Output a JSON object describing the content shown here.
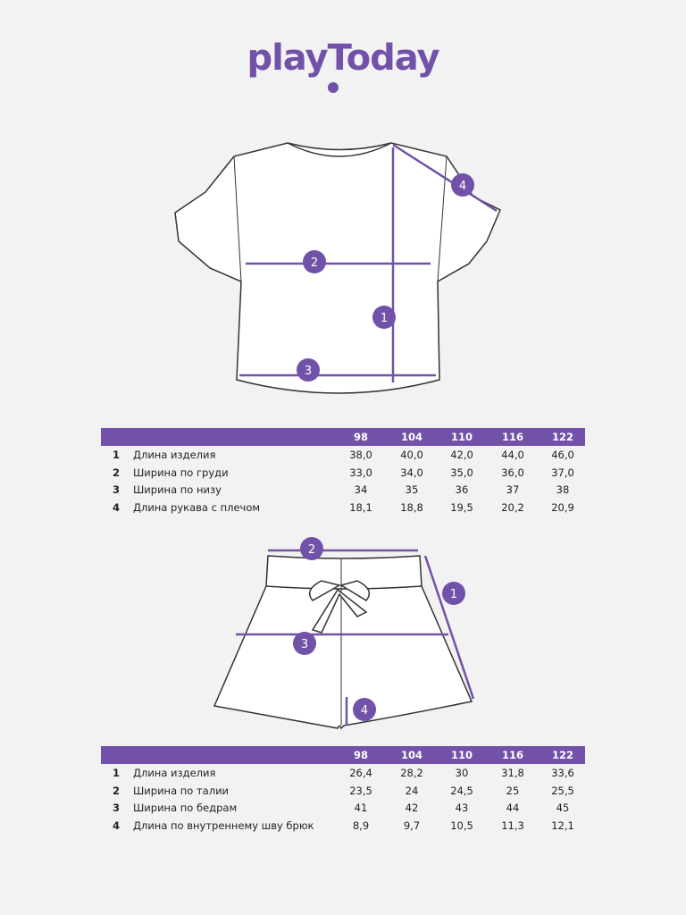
{
  "brand": {
    "logo_text": "playToday",
    "accent_color": "#7152a8"
  },
  "top_garment": {
    "markers": [
      "1",
      "2",
      "3",
      "4"
    ],
    "table": {
      "sizes": [
        "98",
        "104",
        "110",
        "116",
        "122"
      ],
      "rows": [
        {
          "num": "1",
          "label": "Длина изделия",
          "values": [
            "38,0",
            "40,0",
            "42,0",
            "44,0",
            "46,0"
          ]
        },
        {
          "num": "2",
          "label": "Ширина по груди",
          "values": [
            "33,0",
            "34,0",
            "35,0",
            "36,0",
            "37,0"
          ]
        },
        {
          "num": "3",
          "label": "Ширина по низу",
          "values": [
            "34",
            "35",
            "36",
            "37",
            "38"
          ]
        },
        {
          "num": "4",
          "label": "Длина рукава с плечом",
          "values": [
            "18,1",
            "18,8",
            "19,5",
            "20,2",
            "20,9"
          ]
        }
      ]
    }
  },
  "bottom_garment": {
    "markers": [
      "1",
      "2",
      "3",
      "4"
    ],
    "table": {
      "sizes": [
        "98",
        "104",
        "110",
        "116",
        "122"
      ],
      "rows": [
        {
          "num": "1",
          "label": "Длина изделия",
          "values": [
            "26,4",
            "28,2",
            "30",
            "31,8",
            "33,6"
          ]
        },
        {
          "num": "2",
          "label": "Ширина по талии",
          "values": [
            "23,5",
            "24",
            "24,5",
            "25",
            "25,5"
          ]
        },
        {
          "num": "3",
          "label": "Ширина по бедрам",
          "values": [
            "41",
            "42",
            "43",
            "44",
            "45"
          ]
        },
        {
          "num": "4",
          "label": "Длина по внутреннему шву брюк",
          "values": [
            "8,9",
            "9,7",
            "10,5",
            "11,3",
            "12,1"
          ]
        }
      ]
    }
  }
}
